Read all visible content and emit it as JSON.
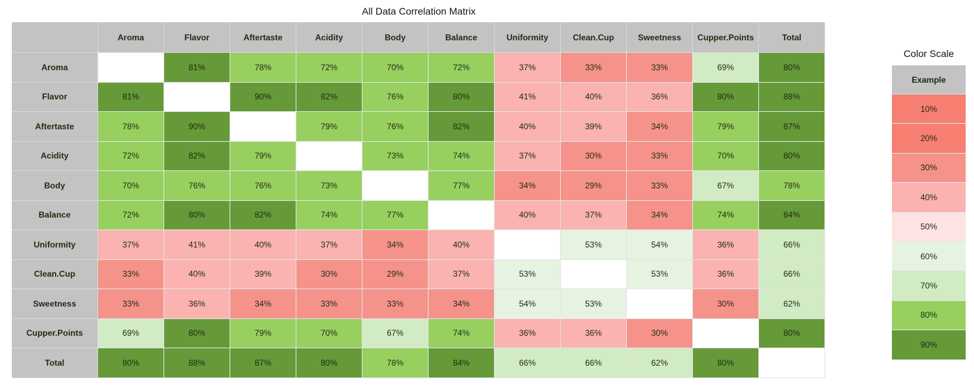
{
  "title": "All Data Correlation Matrix",
  "chart_data": {
    "type": "heatmap",
    "title": "All Data Correlation Matrix",
    "value_unit": "%",
    "labels": [
      "Aroma",
      "Flavor",
      "Aftertaste",
      "Acidity",
      "Body",
      "Balance",
      "Uniformity",
      "Clean.Cup",
      "Sweetness",
      "Cupper.Points",
      "Total"
    ],
    "matrix": [
      [
        null,
        81,
        78,
        72,
        70,
        72,
        37,
        33,
        33,
        69,
        80
      ],
      [
        81,
        null,
        90,
        82,
        76,
        80,
        41,
        40,
        36,
        80,
        88
      ],
      [
        78,
        90,
        null,
        79,
        76,
        82,
        40,
        39,
        34,
        79,
        87
      ],
      [
        72,
        82,
        79,
        null,
        73,
        74,
        37,
        30,
        33,
        70,
        80
      ],
      [
        70,
        76,
        76,
        73,
        null,
        77,
        34,
        29,
        33,
        67,
        78
      ],
      [
        72,
        80,
        82,
        74,
        77,
        null,
        40,
        37,
        34,
        74,
        84
      ],
      [
        37,
        41,
        40,
        37,
        34,
        40,
        null,
        53,
        54,
        36,
        66
      ],
      [
        33,
        40,
        39,
        30,
        29,
        37,
        53,
        null,
        53,
        36,
        66
      ],
      [
        33,
        36,
        34,
        33,
        33,
        34,
        54,
        53,
        null,
        30,
        62
      ],
      [
        69,
        80,
        79,
        70,
        67,
        74,
        36,
        36,
        30,
        null,
        80
      ],
      [
        80,
        88,
        87,
        80,
        78,
        84,
        66,
        66,
        62,
        80,
        null
      ]
    ],
    "color_scale": {
      "title": "Color Scale",
      "header": "Example",
      "values": [
        10,
        20,
        30,
        40,
        50,
        60,
        70,
        80,
        90
      ],
      "colors": [
        "#f77f72",
        "#f77f72",
        "#f5938a",
        "#fab3b0",
        "#fde3e2",
        "#e7f3e1",
        "#d1ebc4",
        "#97d05f",
        "#669a39"
      ]
    }
  }
}
